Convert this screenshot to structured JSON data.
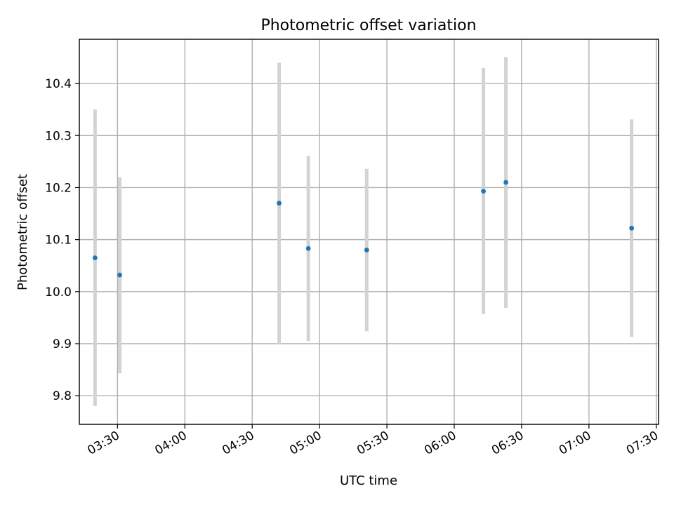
{
  "chart_data": {
    "type": "scatter",
    "title": "Photometric offset variation",
    "xlabel": "UTC time",
    "ylabel": "Photometric offset",
    "grid": true,
    "xlim": [
      "03:13",
      "07:31"
    ],
    "ylim": [
      9.745,
      10.485
    ],
    "x_ticks": [
      "03:30",
      "04:00",
      "04:30",
      "05:00",
      "05:30",
      "06:00",
      "06:30",
      "07:00",
      "07:30"
    ],
    "y_ticks": [
      9.8,
      9.9,
      10.0,
      10.1,
      10.2,
      10.3,
      10.4
    ],
    "y_tick_labels": [
      "9.8",
      "9.9",
      "10.0",
      "10.1",
      "10.2",
      "10.3",
      "10.4"
    ],
    "marker_color": "#1f77b4",
    "errorbar_color": "#d3d3d3",
    "points": [
      {
        "time": "03:20",
        "y": 10.065,
        "ymin": 9.78,
        "ymax": 10.35
      },
      {
        "time": "03:31",
        "y": 10.032,
        "ymin": 9.843,
        "ymax": 10.22
      },
      {
        "time": "04:42",
        "y": 10.17,
        "ymin": 9.9,
        "ymax": 10.44
      },
      {
        "time": "04:55",
        "y": 10.083,
        "ymin": 9.905,
        "ymax": 10.261
      },
      {
        "time": "05:21",
        "y": 10.08,
        "ymin": 9.924,
        "ymax": 10.236
      },
      {
        "time": "06:13",
        "y": 10.193,
        "ymin": 9.957,
        "ymax": 10.43
      },
      {
        "time": "06:23",
        "y": 10.21,
        "ymin": 9.969,
        "ymax": 10.451
      },
      {
        "time": "07:19",
        "y": 10.122,
        "ymin": 9.913,
        "ymax": 10.331
      }
    ]
  }
}
